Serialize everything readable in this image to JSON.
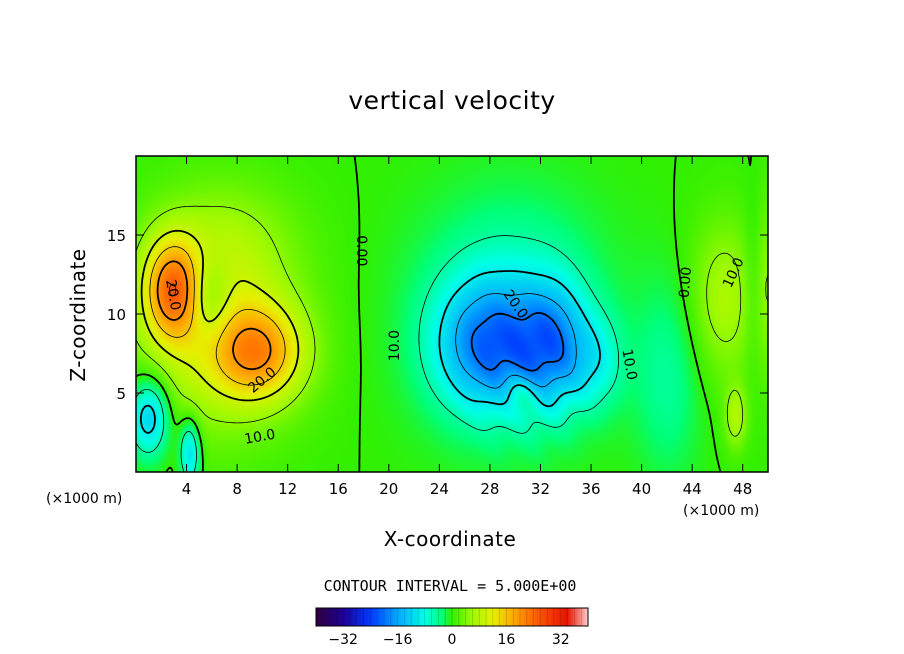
{
  "chart_data": {
    "type": "contour",
    "title": "vertical velocity",
    "xlabel": "X-coordinate",
    "ylabel": "Z-coordinate",
    "x_unit_label": "(×1000 m)",
    "xlim": [
      0,
      50
    ],
    "ylim": [
      0,
      20
    ],
    "x_ticks": [
      "4",
      "8",
      "12",
      "16",
      "20",
      "24",
      "28",
      "32",
      "36",
      "40",
      "44",
      "48"
    ],
    "y_ticks": [
      "5",
      "10",
      "15"
    ],
    "contour_interval_text": "CONTOUR INTERVAL = 5.000E+00",
    "contour_levels": [
      -25,
      -20,
      -15,
      -10,
      -5,
      0,
      5,
      10,
      15,
      20,
      25
    ],
    "contour_labels": [
      "20.0",
      "20.0",
      "10.0",
      "0.00",
      "10.0",
      "20.0",
      "10.0",
      "0.00",
      "10.0"
    ],
    "colorbar": {
      "range": [
        -40,
        40
      ],
      "ticks": [
        "−32",
        "−16",
        "0",
        "16",
        "32"
      ],
      "tick_values": [
        -32,
        -16,
        0,
        16,
        32
      ]
    },
    "features": [
      {
        "x": 3.0,
        "z": 11.5,
        "w": 24
      },
      {
        "x": 9.5,
        "z": 8.0,
        "w": 22
      },
      {
        "x": 28.0,
        "z": 7.5,
        "w": -26
      },
      {
        "x": 33.0,
        "z": 8.0,
        "w": -22
      },
      {
        "x": 45.5,
        "z": 11.0,
        "w": 6
      },
      {
        "x": 47.5,
        "z": 3.5,
        "w": 6
      }
    ]
  }
}
